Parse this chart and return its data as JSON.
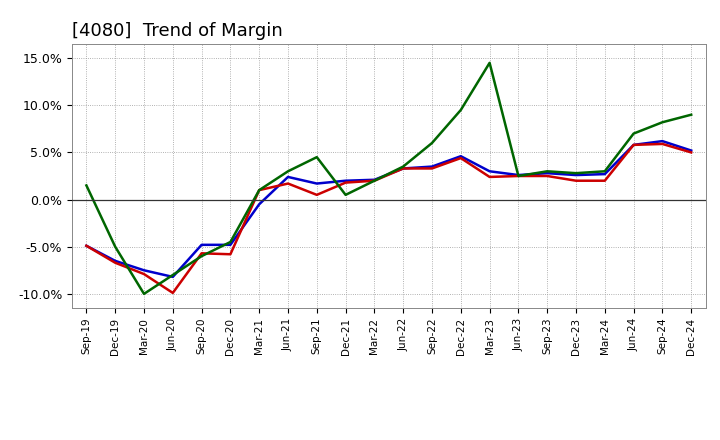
{
  "title": "[4080]  Trend of Margin",
  "x_labels": [
    "Sep-19",
    "Dec-19",
    "Mar-20",
    "Jun-20",
    "Sep-20",
    "Dec-20",
    "Mar-21",
    "Jun-21",
    "Sep-21",
    "Dec-21",
    "Mar-22",
    "Jun-22",
    "Sep-22",
    "Dec-22",
    "Mar-23",
    "Jun-23",
    "Sep-23",
    "Dec-23",
    "Mar-24",
    "Jun-24",
    "Sep-24",
    "Dec-24"
  ],
  "ordinary_income": [
    -0.049,
    -0.065,
    -0.075,
    -0.082,
    -0.048,
    -0.048,
    -0.005,
    0.024,
    0.017,
    0.02,
    0.021,
    0.033,
    0.035,
    0.046,
    0.03,
    0.026,
    0.028,
    0.026,
    0.027,
    0.058,
    0.062,
    0.052
  ],
  "net_income": [
    -0.049,
    -0.067,
    -0.079,
    -0.099,
    -0.057,
    -0.058,
    0.01,
    0.017,
    0.005,
    0.018,
    0.02,
    0.033,
    0.033,
    0.044,
    0.024,
    0.025,
    0.025,
    0.02,
    0.02,
    0.058,
    0.059,
    0.05
  ],
  "operating_cashflow": [
    0.015,
    -0.05,
    -0.1,
    -0.08,
    -0.06,
    -0.045,
    0.01,
    0.03,
    0.045,
    0.005,
    0.02,
    0.035,
    0.06,
    0.095,
    0.145,
    0.025,
    0.03,
    0.028,
    0.03,
    0.07,
    0.082,
    0.09
  ],
  "ylim": [
    -0.115,
    0.165
  ],
  "yticks": [
    -0.1,
    -0.05,
    0.0,
    0.05,
    0.1,
    0.15
  ],
  "ytick_labels": [
    "-10.0%",
    "-5.0%",
    "0.0%",
    "5.0%",
    "10.0%",
    "15.0%"
  ],
  "color_ordinary": "#0000cc",
  "color_net": "#cc0000",
  "color_cashflow": "#006600",
  "line_width": 1.8,
  "bg_color": "#ffffff",
  "grid_color": "#999999",
  "title_fontsize": 13
}
